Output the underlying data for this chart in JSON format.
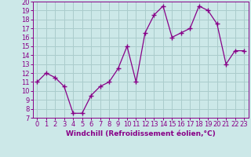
{
  "x": [
    0,
    1,
    2,
    3,
    4,
    5,
    6,
    7,
    8,
    9,
    10,
    11,
    12,
    13,
    14,
    15,
    16,
    17,
    18,
    19,
    20,
    21,
    22,
    23
  ],
  "y": [
    11.0,
    12.0,
    11.5,
    10.5,
    7.5,
    7.5,
    9.5,
    10.5,
    11.0,
    12.5,
    15.0,
    11.0,
    16.5,
    18.5,
    19.5,
    16.0,
    16.5,
    17.0,
    19.5,
    19.0,
    17.5,
    13.0,
    14.5,
    14.5
  ],
  "line_color": "#880088",
  "marker": "+",
  "marker_size": 4,
  "bg_color": "#cce8e8",
  "grid_color": "#aacccc",
  "xlabel": "Windchill (Refroidissement éolien,°C)",
  "xlabel_color": "#880088",
  "tick_color": "#880088",
  "ylim": [
    7,
    20
  ],
  "xlim": [
    -0.5,
    23.5
  ],
  "yticks": [
    7,
    8,
    9,
    10,
    11,
    12,
    13,
    14,
    15,
    16,
    17,
    18,
    19,
    20
  ],
  "xticks": [
    0,
    1,
    2,
    3,
    4,
    5,
    6,
    7,
    8,
    9,
    10,
    11,
    12,
    13,
    14,
    15,
    16,
    17,
    18,
    19,
    20,
    21,
    22,
    23
  ],
  "tick_fontsize": 6,
  "xlabel_fontsize": 6.5
}
